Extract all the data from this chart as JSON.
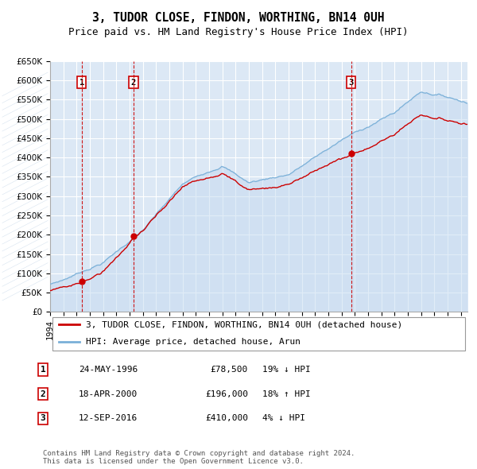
{
  "title": "3, TUDOR CLOSE, FINDON, WORTHING, BN14 0UH",
  "subtitle": "Price paid vs. HM Land Registry's House Price Index (HPI)",
  "ylim": [
    0,
    650000
  ],
  "yticks": [
    0,
    50000,
    100000,
    150000,
    200000,
    250000,
    300000,
    350000,
    400000,
    450000,
    500000,
    550000,
    600000,
    650000
  ],
  "xlim_start": 1994.0,
  "xlim_end": 2025.5,
  "plot_bg_color": "#dce8f5",
  "grid_color": "#ffffff",
  "sale_color": "#cc0000",
  "hpi_color": "#7ab0d8",
  "hpi_fill_color": "#c5daf0",
  "sale_points": [
    {
      "year": 1996.38,
      "price": 78500,
      "label": "1"
    },
    {
      "year": 2000.29,
      "price": 196000,
      "label": "2"
    },
    {
      "year": 2016.71,
      "price": 410000,
      "label": "3"
    }
  ],
  "legend_sale_label": "3, TUDOR CLOSE, FINDON, WORTHING, BN14 0UH (detached house)",
  "legend_hpi_label": "HPI: Average price, detached house, Arun",
  "table_rows": [
    {
      "num": "1",
      "date": "24-MAY-1996",
      "price": "£78,500",
      "pct": "19% ↓ HPI"
    },
    {
      "num": "2",
      "date": "18-APR-2000",
      "price": "£196,000",
      "pct": "18% ↑ HPI"
    },
    {
      "num": "3",
      "date": "12-SEP-2016",
      "price": "£410,000",
      "pct": "4% ↓ HPI"
    }
  ],
  "footer": "Contains HM Land Registry data © Crown copyright and database right 2024.\nThis data is licensed under the Open Government Licence v3.0.",
  "title_fontsize": 10.5,
  "subtitle_fontsize": 9,
  "axis_fontsize": 7.5,
  "legend_fontsize": 8,
  "table_fontsize": 8,
  "footer_fontsize": 6.5
}
